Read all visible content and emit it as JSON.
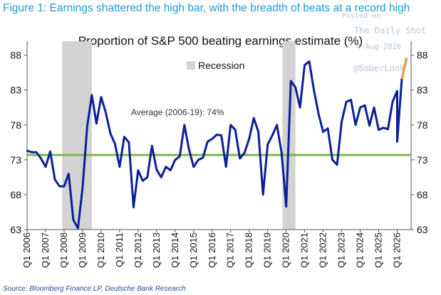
{
  "figure": {
    "title": "Figure 1: Earnings shattered the high bar, with the breadth of beats at a record high",
    "source": "Source: Bloomberg Finance LP, Deutsche Bank Research"
  },
  "watermark": {
    "posted": "Posted on",
    "source": "The Daily Shot",
    "date": "4-Aug-2026",
    "handle": "@SoberLook"
  },
  "legend": {
    "recession_label": "Recession"
  },
  "annotation": {
    "average_text": "Average (2006-19): 74%"
  },
  "colors": {
    "series": "#0b1f99",
    "average": "#7ab648",
    "recession": "#d3d3d3",
    "latest": "#f39c4b",
    "title": "#1f9bd7"
  },
  "chart_data": {
    "type": "line",
    "title": "Proportion of S&P 500 beating earnings estimate (%)",
    "xlabel": "",
    "ylabel": "",
    "x_ticks": [
      "Q1 2006",
      "Q1 2007",
      "Q1 2008",
      "Q1 2009",
      "Q1 2010",
      "Q1 2011",
      "Q1 2012",
      "Q1 2013",
      "Q1 2014",
      "Q1 2015",
      "Q1 2016",
      "Q1 2017",
      "Q1 2018",
      "Q1 2019",
      "Q1 2020",
      "Q1 2021",
      "Q1 2022",
      "Q1 2023",
      "Q1 2024",
      "Q1 2025",
      "Q1 2026"
    ],
    "y_ticks": [
      63,
      68,
      73,
      78,
      83,
      88
    ],
    "ylim": [
      63,
      90
    ],
    "xlim": [
      2006.0,
      2026.75
    ],
    "grid": false,
    "average": 73.7,
    "recessions": [
      [
        2007.9,
        2009.5
      ],
      [
        2019.8,
        2020.5
      ]
    ],
    "series": [
      {
        "x": [
          2006.0,
          2006.25,
          2006.5,
          2006.75,
          2007.0,
          2007.25,
          2007.5,
          2007.75,
          2008.0,
          2008.25,
          2008.5,
          2008.75,
          2009.0,
          2009.25,
          2009.5,
          2009.75,
          2010.0,
          2010.25,
          2010.5,
          2010.75,
          2011.0,
          2011.25,
          2011.5,
          2011.75,
          2012.0,
          2012.25,
          2012.5,
          2012.75,
          2013.0,
          2013.25,
          2013.5,
          2013.75,
          2014.0,
          2014.25,
          2014.5,
          2014.75,
          2015.0,
          2015.25,
          2015.5,
          2015.75,
          2016.0,
          2016.25,
          2016.5,
          2016.75,
          2017.0,
          2017.25,
          2017.5,
          2017.75,
          2018.0,
          2018.25,
          2018.5,
          2018.75,
          2019.0,
          2019.25,
          2019.5,
          2019.75,
          2020.0,
          2020.25,
          2020.5,
          2020.75,
          2021.0,
          2021.25,
          2021.5,
          2021.75,
          2022.0,
          2022.25,
          2022.5,
          2022.75,
          2023.0,
          2023.25,
          2023.5,
          2023.75,
          2024.0,
          2024.25,
          2024.5,
          2024.75,
          2025.0,
          2025.25,
          2025.5,
          2025.75,
          2026.0
        ],
        "values": [
          74.3,
          74.1,
          74.1,
          73.2,
          72.0,
          74.2,
          70.2,
          69.2,
          69.2,
          71.0,
          64.4,
          63.2,
          69.0,
          77.8,
          82.3,
          78.2,
          82.0,
          79.8,
          76.8,
          75.3,
          72.0,
          76.3,
          75.5,
          66.2,
          71.5,
          70.0,
          70.5,
          75.0,
          71.6,
          70.5,
          72.0,
          71.5,
          73.0,
          73.5,
          78.0,
          74.5,
          72.0,
          73.0,
          73.3,
          75.6,
          76.0,
          76.6,
          76.5,
          72.0,
          78.0,
          77.3,
          73.2,
          74.0,
          76.0,
          79.0,
          77.0,
          68.0,
          75.2,
          76.5,
          78.0,
          74.0,
          66.3,
          84.3,
          83.4,
          80.5,
          86.6,
          87.1,
          83.0,
          79.6,
          77.0,
          77.5,
          73.0,
          72.3,
          78.5,
          81.3,
          81.6,
          78.0,
          80.5,
          80.8,
          77.9,
          80.5,
          77.3,
          77.6,
          77.4,
          81.3,
          82.9
        ],
        "latest_x": [
          2026.0,
          2026.25,
          2026.5
        ],
        "latest_values": [
          75.6,
          84.6,
          87.5
        ]
      }
    ]
  }
}
